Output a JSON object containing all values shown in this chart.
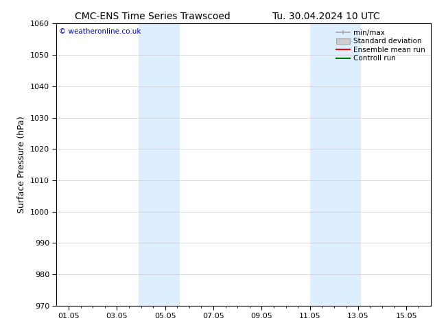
{
  "title_left": "CMC-ENS Time Series Trawscoed",
  "title_right": "Tu. 30.04.2024 10 UTC",
  "ylabel": "Surface Pressure (hPa)",
  "ylim": [
    970,
    1060
  ],
  "yticks": [
    970,
    980,
    990,
    1000,
    1010,
    1020,
    1030,
    1040,
    1050,
    1060
  ],
  "xtick_positions": [
    1,
    3,
    5,
    7,
    9,
    11,
    13,
    15
  ],
  "xtick_labels": [
    "01.05",
    "03.05",
    "05.05",
    "07.05",
    "09.05",
    "11.05",
    "13.05",
    "15.05"
  ],
  "xlim": [
    0.5,
    16
  ],
  "shaded_bands": [
    {
      "xmin": 3.9,
      "xmax": 5.6
    },
    {
      "xmin": 11.0,
      "xmax": 13.1
    }
  ],
  "band_color": "#ddeeff",
  "copyright_text": "© weatheronline.co.uk",
  "copyright_color": "#0000cc",
  "legend_items": [
    {
      "label": "min/max"
    },
    {
      "label": "Standard deviation"
    },
    {
      "label": "Ensemble mean run"
    },
    {
      "label": "Controll run"
    }
  ],
  "minmax_color": "#aaaaaa",
  "std_color": "#cccccc",
  "ens_color": "#ff0000",
  "ctrl_color": "#008000",
  "bg_color": "#ffffff",
  "grid_color": "#cccccc",
  "title_fontsize": 10,
  "label_fontsize": 9,
  "tick_fontsize": 8,
  "legend_fontsize": 7.5
}
